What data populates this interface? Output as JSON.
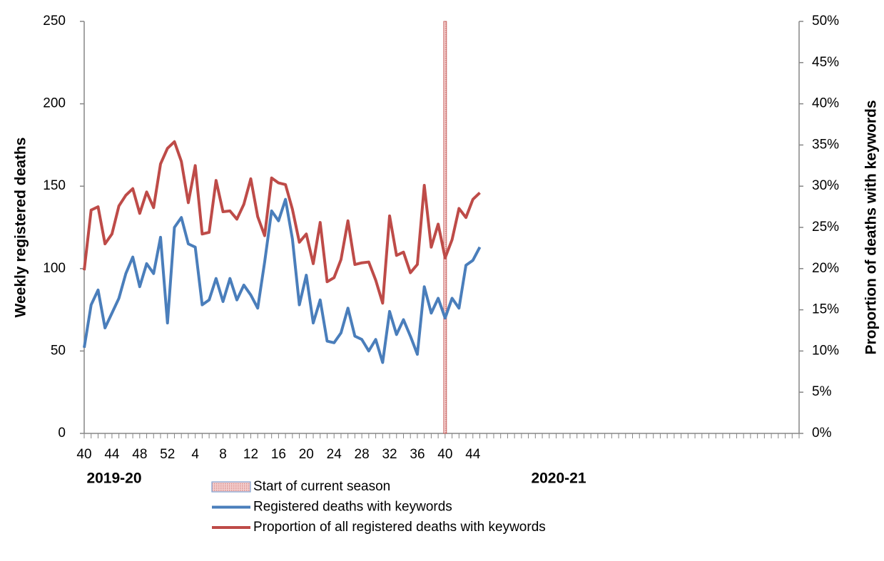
{
  "chart_data": {
    "type": "line",
    "y_label": "Weekly registered deaths",
    "y2_label": "Proportion of deaths with keywords",
    "season_labels": [
      "2019-20",
      "2020-21"
    ],
    "categories": [
      "40",
      null,
      null,
      null,
      "44",
      null,
      null,
      null,
      "48",
      null,
      null,
      null,
      "52",
      null,
      null,
      null,
      "4",
      null,
      null,
      null,
      "8",
      null,
      null,
      null,
      "12",
      null,
      null,
      null,
      "16",
      null,
      null,
      null,
      "20",
      null,
      null,
      null,
      "24",
      null,
      null,
      null,
      "28",
      null,
      null,
      null,
      "32",
      null,
      null,
      null,
      "36",
      null,
      null,
      null,
      "40",
      null,
      null,
      null,
      "44",
      null,
      null,
      null,
      null,
      null,
      null,
      null,
      null,
      null,
      null,
      null,
      null,
      null,
      null,
      null,
      null,
      null,
      null,
      null,
      null,
      null,
      null,
      null,
      null,
      null,
      null,
      null,
      null,
      null,
      null,
      null,
      null,
      null,
      null,
      null,
      null,
      null,
      null,
      null,
      null,
      null,
      null,
      null,
      null,
      null,
      null,
      null
    ],
    "series": [
      {
        "name": "Registered deaths with keywords",
        "color": "#4a7ebb",
        "axis": "y",
        "values": [
          52,
          78,
          87,
          64,
          73,
          82,
          97,
          107,
          89,
          103,
          97,
          119,
          67,
          125,
          131,
          115,
          113,
          78,
          81,
          94,
          80,
          94,
          81,
          90,
          84,
          76,
          104,
          135,
          129,
          142,
          118,
          78,
          96,
          67,
          81,
          56,
          55,
          61,
          76,
          59,
          57,
          50,
          57,
          43,
          74,
          60,
          69,
          59,
          48,
          89,
          73,
          82,
          70,
          82,
          76,
          102,
          105,
          113,
          null,
          null,
          null,
          null,
          null,
          null,
          null,
          null,
          null,
          null,
          null,
          null,
          null,
          null,
          null,
          null,
          null,
          null,
          null,
          null,
          null,
          null,
          null,
          null,
          null,
          null,
          null,
          null,
          null,
          null,
          null,
          null,
          null,
          null,
          null,
          null,
          null,
          null,
          null,
          null,
          null,
          null,
          null,
          null,
          null,
          null
        ]
      },
      {
        "name": "Proportion of all registered deaths with keywords",
        "color": "#be4b48",
        "axis": "y2",
        "values": [
          19.8,
          27.1,
          27.5,
          23,
          24.2,
          27.6,
          28.9,
          29.7,
          26.7,
          29.3,
          27.4,
          32.7,
          34.6,
          35.4,
          33,
          28,
          32.5,
          24.2,
          24.4,
          30.7,
          26.9,
          27,
          26,
          27.8,
          30.9,
          26.3,
          24,
          31,
          30.4,
          30.2,
          27.2,
          23.2,
          24.2,
          20.6,
          25.6,
          18.4,
          18.9,
          21.1,
          25.8,
          20.5,
          20.7,
          20.8,
          18.6,
          15.8,
          26.4,
          21.6,
          22,
          19.5,
          20.5,
          30.1,
          22.6,
          25.4,
          21.3,
          23.5,
          27.3,
          26.2,
          28.4,
          29.2,
          null,
          null,
          null,
          null,
          null,
          null,
          null,
          null,
          null,
          null,
          null,
          null,
          null,
          null,
          null,
          null,
          null,
          null,
          null,
          null,
          null,
          null,
          null,
          null,
          null,
          null,
          null,
          null,
          null,
          null,
          null,
          null,
          null,
          null,
          null,
          null,
          null,
          null,
          null,
          null,
          null,
          null,
          null,
          null,
          null,
          null
        ]
      }
    ],
    "vline": {
      "name": "Start of current season",
      "category_index": 52,
      "color": "#c0504d"
    },
    "ylim": [
      0,
      250
    ],
    "yticks": [
      0,
      50,
      100,
      150,
      200,
      250
    ],
    "y2lim": [
      0,
      50
    ],
    "y2ticks": [
      {
        "value": 0,
        "label": "0%"
      },
      {
        "value": 5,
        "label": "5%"
      },
      {
        "value": 10,
        "label": "10%"
      },
      {
        "value": 15,
        "label": "15%"
      },
      {
        "value": 20,
        "label": "20%"
      },
      {
        "value": 25,
        "label": "25%"
      },
      {
        "value": 30,
        "label": "30%"
      },
      {
        "value": 35,
        "label": "35%"
      },
      {
        "value": 40,
        "label": "40%"
      },
      {
        "value": 45,
        "label": "45%"
      },
      {
        "value": 50,
        "label": "50%"
      }
    ],
    "grid": false
  }
}
